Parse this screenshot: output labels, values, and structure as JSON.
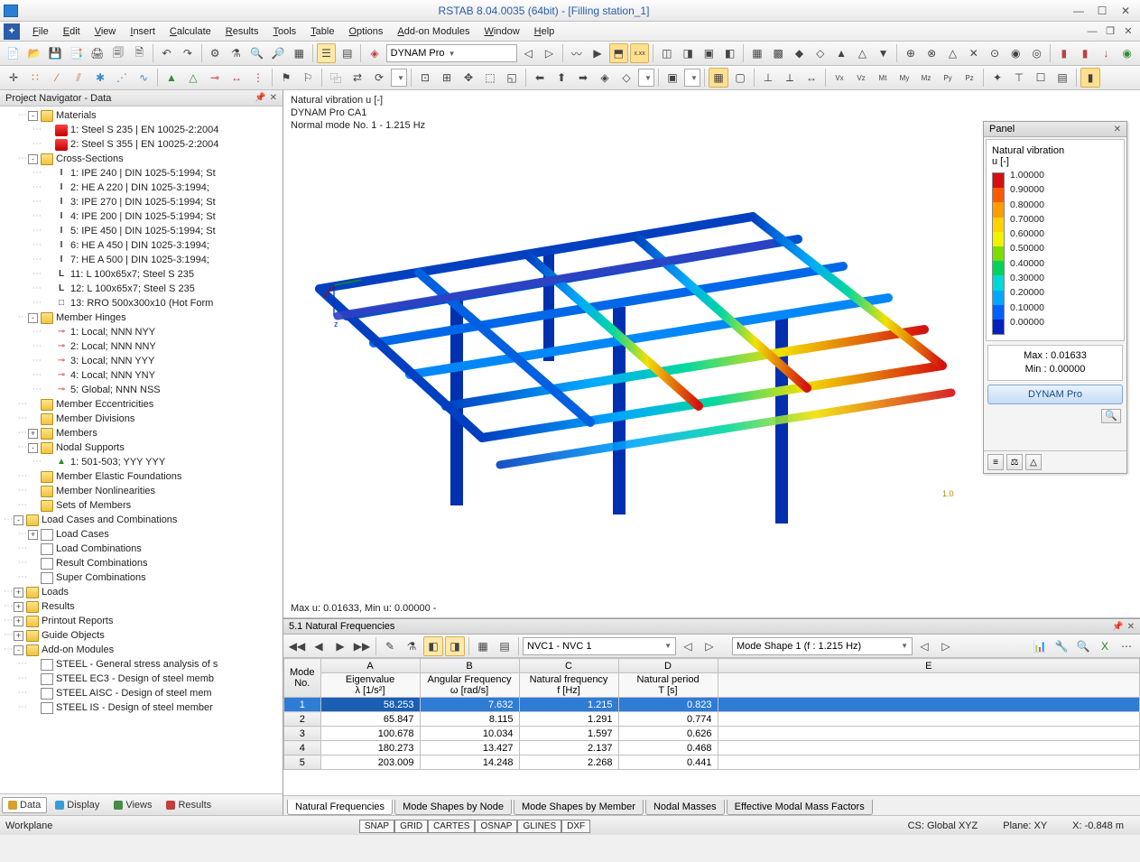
{
  "title": "RSTAB 8.04.0035 (64bit) - [Filling station_1]",
  "menus": [
    "File",
    "Edit",
    "View",
    "Insert",
    "Calculate",
    "Results",
    "Tools",
    "Table",
    "Options",
    "Add-on Modules",
    "Window",
    "Help"
  ],
  "combo_module": "DYNAM Pro",
  "navigator_title": "Project Navigator - Data",
  "tree": [
    {
      "l": 3,
      "tw": "-",
      "ico": "folder",
      "t": "Materials"
    },
    {
      "l": 4,
      "tw": "",
      "ico": "mat",
      "t": "1: Steel S 235 | EN 10025-2:2004"
    },
    {
      "l": 4,
      "tw": "",
      "ico": "mat",
      "t": "2: Steel S 355 | EN 10025-2:2004"
    },
    {
      "l": 3,
      "tw": "-",
      "ico": "folder",
      "t": "Cross-Sections"
    },
    {
      "l": 4,
      "tw": "",
      "ico": "sec",
      "g": "I",
      "t": "1: IPE 240 | DIN 1025-5:1994; St"
    },
    {
      "l": 4,
      "tw": "",
      "ico": "sec",
      "g": "I",
      "t": "2: HE A 220 | DIN 1025-3:1994;"
    },
    {
      "l": 4,
      "tw": "",
      "ico": "sec",
      "g": "I",
      "t": "3: IPE 270 | DIN 1025-5:1994; St"
    },
    {
      "l": 4,
      "tw": "",
      "ico": "sec",
      "g": "I",
      "t": "4: IPE 200 | DIN 1025-5:1994; St"
    },
    {
      "l": 4,
      "tw": "",
      "ico": "sec",
      "g": "I",
      "t": "5: IPE 450 | DIN 1025-5:1994; St"
    },
    {
      "l": 4,
      "tw": "",
      "ico": "sec",
      "g": "I",
      "t": "6: HE A 450 | DIN 1025-3:1994;"
    },
    {
      "l": 4,
      "tw": "",
      "ico": "sec",
      "g": "I",
      "t": "7: HE A 500 | DIN 1025-3:1994;"
    },
    {
      "l": 4,
      "tw": "",
      "ico": "sec",
      "g": "L",
      "t": "11: L 100x65x7; Steel S 235"
    },
    {
      "l": 4,
      "tw": "",
      "ico": "sec",
      "g": "L",
      "t": "12: L 100x65x7; Steel S 235"
    },
    {
      "l": 4,
      "tw": "",
      "ico": "sec",
      "g": "□",
      "t": "13: RRO 500x300x10 (Hot Form"
    },
    {
      "l": 3,
      "tw": "-",
      "ico": "folder",
      "t": "Member Hinges"
    },
    {
      "l": 4,
      "tw": "",
      "ico": "hinge",
      "g": "⊸",
      "t": "1: Local; NNN NYY"
    },
    {
      "l": 4,
      "tw": "",
      "ico": "hinge",
      "g": "⊸",
      "t": "2: Local; NNN NNY"
    },
    {
      "l": 4,
      "tw": "",
      "ico": "hinge",
      "g": "⊸",
      "t": "3: Local; NNN YYY"
    },
    {
      "l": 4,
      "tw": "",
      "ico": "hinge",
      "g": "⊸",
      "t": "4: Local; NNN YNY"
    },
    {
      "l": 4,
      "tw": "",
      "ico": "hinge",
      "g": "⊸",
      "t": "5: Global; NNN NSS"
    },
    {
      "l": 3,
      "tw": "",
      "ico": "folder",
      "t": "Member Eccentricities"
    },
    {
      "l": 3,
      "tw": "",
      "ico": "folder",
      "t": "Member Divisions"
    },
    {
      "l": 3,
      "tw": "+",
      "ico": "folder",
      "t": "Members"
    },
    {
      "l": 3,
      "tw": "-",
      "ico": "folder",
      "t": "Nodal Supports"
    },
    {
      "l": 4,
      "tw": "",
      "ico": "sup",
      "g": "▲",
      "t": "1: 501-503; YYY YYY"
    },
    {
      "l": 3,
      "tw": "",
      "ico": "folder",
      "t": "Member Elastic Foundations"
    },
    {
      "l": 3,
      "tw": "",
      "ico": "folder",
      "t": "Member Nonlinearities"
    },
    {
      "l": 3,
      "tw": "",
      "ico": "folder",
      "t": "Sets of Members"
    },
    {
      "l": 2,
      "tw": "-",
      "ico": "folder",
      "t": "Load Cases and Combinations"
    },
    {
      "l": 3,
      "tw": "+",
      "ico": "item",
      "t": "Load Cases"
    },
    {
      "l": 3,
      "tw": "",
      "ico": "item",
      "t": "Load Combinations"
    },
    {
      "l": 3,
      "tw": "",
      "ico": "item",
      "t": "Result Combinations"
    },
    {
      "l": 3,
      "tw": "",
      "ico": "item",
      "t": "Super Combinations"
    },
    {
      "l": 2,
      "tw": "+",
      "ico": "folder",
      "t": "Loads"
    },
    {
      "l": 2,
      "tw": "+",
      "ico": "folder",
      "t": "Results"
    },
    {
      "l": 2,
      "tw": "+",
      "ico": "folder",
      "t": "Printout Reports"
    },
    {
      "l": 2,
      "tw": "+",
      "ico": "folder",
      "t": "Guide Objects"
    },
    {
      "l": 2,
      "tw": "-",
      "ico": "folder",
      "t": "Add-on Modules"
    },
    {
      "l": 3,
      "tw": "",
      "ico": "item",
      "t": "STEEL - General stress analysis of s"
    },
    {
      "l": 3,
      "tw": "",
      "ico": "item",
      "t": "STEEL EC3 - Design of steel memb"
    },
    {
      "l": 3,
      "tw": "",
      "ico": "item",
      "t": "STEEL AISC - Design of steel mem"
    },
    {
      "l": 3,
      "tw": "",
      "ico": "item",
      "t": "STEEL IS - Design of steel member"
    }
  ],
  "navtabs": [
    {
      "t": "Data",
      "c": "#d4a030",
      "active": true
    },
    {
      "t": "Display",
      "c": "#3a9cd8"
    },
    {
      "t": "Views",
      "c": "#4a8a4a"
    },
    {
      "t": "Results",
      "c": "#c04040"
    }
  ],
  "canvas_info": [
    "Natural vibration u [-]",
    "DYNAM Pro CA1",
    "Normal mode No. 1 - 1.215 Hz"
  ],
  "canvas_minmax": "Max u: 0.01633, Min u: 0.00000 -",
  "panel": {
    "title": "Panel",
    "header": "Natural vibration",
    "header2": "u [-]",
    "scale_colors": [
      "#d41010",
      "#ff5a00",
      "#ff9c00",
      "#ffd200",
      "#f2f200",
      "#7ade00",
      "#00d45a",
      "#00d8d8",
      "#00a8ff",
      "#0060ff",
      "#0020c0"
    ],
    "scale_labels": [
      "1.00000",
      "0.90000",
      "0.80000",
      "0.70000",
      "0.60000",
      "0.50000",
      "0.40000",
      "0.30000",
      "0.20000",
      "0.10000",
      "0.00000"
    ],
    "max": "Max  :   0.01633",
    "min": "Min   :   0.00000",
    "button": "DYNAM Pro"
  },
  "table": {
    "title": "5.1 Natural Frequencies",
    "nvc_combo": "NVC1 - NVC 1",
    "mode_combo": "Mode Shape 1 (f : 1.215 Hz)",
    "cols_letter": [
      "A",
      "B",
      "C",
      "D",
      "E"
    ],
    "cols": [
      {
        "h1": "Mode",
        "h2": "No."
      },
      {
        "h1": "Eigenvalue",
        "h2": "λ [1/s²]"
      },
      {
        "h1": "Angular Frequency",
        "h2": "ω [rad/s]"
      },
      {
        "h1": "Natural frequency",
        "h2": "f [Hz]"
      },
      {
        "h1": "Natural period",
        "h2": "T [s]"
      },
      {
        "h1": "",
        "h2": ""
      }
    ],
    "rows": [
      [
        "1",
        "58.253",
        "7.632",
        "1.215",
        "0.823"
      ],
      [
        "2",
        "65.847",
        "8.115",
        "1.291",
        "0.774"
      ],
      [
        "3",
        "100.678",
        "10.034",
        "1.597",
        "0.626"
      ],
      [
        "4",
        "180.273",
        "13.427",
        "2.137",
        "0.468"
      ],
      [
        "5",
        "203.009",
        "14.248",
        "2.268",
        "0.441"
      ]
    ],
    "tabs": [
      "Natural Frequencies",
      "Mode Shapes by Node",
      "Mode Shapes by Member",
      "Nodal Masses",
      "Effective Modal Mass Factors"
    ]
  },
  "status": {
    "left": "Workplane",
    "buttons": [
      "SNAP",
      "GRID",
      "CARTES",
      "OSNAP",
      "GLINES",
      "DXF"
    ],
    "cs": "CS: Global XYZ",
    "plane": "Plane: XY",
    "x": "X:   -0.848 m"
  }
}
